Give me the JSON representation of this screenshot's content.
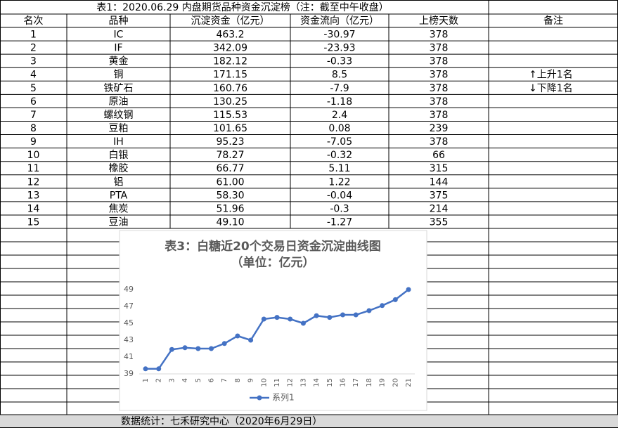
{
  "table": {
    "title": "表1：2020.06.29 内盘期货品种资金沉淀榜（注：截至中午收盘）",
    "headers": [
      "名次",
      "品种",
      "沉淀资金（亿元）",
      "资金流向（亿元）",
      "上榜天数",
      "备注"
    ],
    "rows": [
      [
        "1",
        "IC",
        "463.2",
        "-30.97",
        "378"
      ],
      [
        "2",
        "IF",
        "342.09",
        "-23.93",
        "378"
      ],
      [
        "3",
        "黄金",
        "182.12",
        "-0.33",
        "378"
      ],
      [
        "4",
        "铜",
        "171.15",
        "8.5",
        "378",
        "↑上升1名"
      ],
      [
        "5",
        "铁矿石",
        "160.76",
        "-7.9",
        "378",
        "↓下降1名"
      ],
      [
        "6",
        "原油",
        "130.25",
        "-1.18",
        "378"
      ],
      [
        "7",
        "螺纹钢",
        "115.53",
        "2.4",
        "378"
      ],
      [
        "8",
        "豆粕",
        "101.65",
        "0.08",
        "239"
      ],
      [
        "9",
        "IH",
        "95.23",
        "-7.05",
        "378"
      ],
      [
        "10",
        "白银",
        "78.27",
        "-0.32",
        "66"
      ],
      [
        "11",
        "橡胶",
        "66.77",
        "5.11",
        "315"
      ],
      [
        "12",
        "铝",
        "61.00",
        "1.22",
        "144"
      ],
      [
        "13",
        "PTA",
        "58.30",
        "-0.04",
        "375"
      ],
      [
        "14",
        "焦炭",
        "51.96",
        "-0.3",
        "214"
      ],
      [
        "15",
        "豆油",
        "49.10",
        "-1.27",
        "355"
      ]
    ]
  },
  "chart_data": {
    "type": "line",
    "title": "表3：白糖近20个交易日资金沉淀曲线图",
    "subtitle": "（单位：亿元）",
    "categories": [
      "1",
      "2",
      "3",
      "4",
      "5",
      "6",
      "7",
      "8",
      "9",
      "10",
      "11",
      "12",
      "13",
      "14",
      "15",
      "16",
      "17",
      "18",
      "19",
      "20",
      "21"
    ],
    "series": [
      {
        "name": "系列1",
        "color": "#4472c4",
        "values": [
          39.6,
          39.6,
          41.9,
          42.1,
          42.0,
          42.0,
          42.6,
          43.5,
          43.0,
          45.5,
          45.7,
          45.5,
          45.0,
          45.9,
          45.7,
          46.0,
          46.0,
          46.5,
          47.1,
          47.8,
          49.0
        ]
      }
    ],
    "ylim": [
      39,
      49
    ],
    "yticks": [
      39,
      41,
      43,
      45,
      47,
      49
    ],
    "legend": "bottom"
  },
  "footer": "数据统计：七禾研究中心（2020年6月29日）"
}
